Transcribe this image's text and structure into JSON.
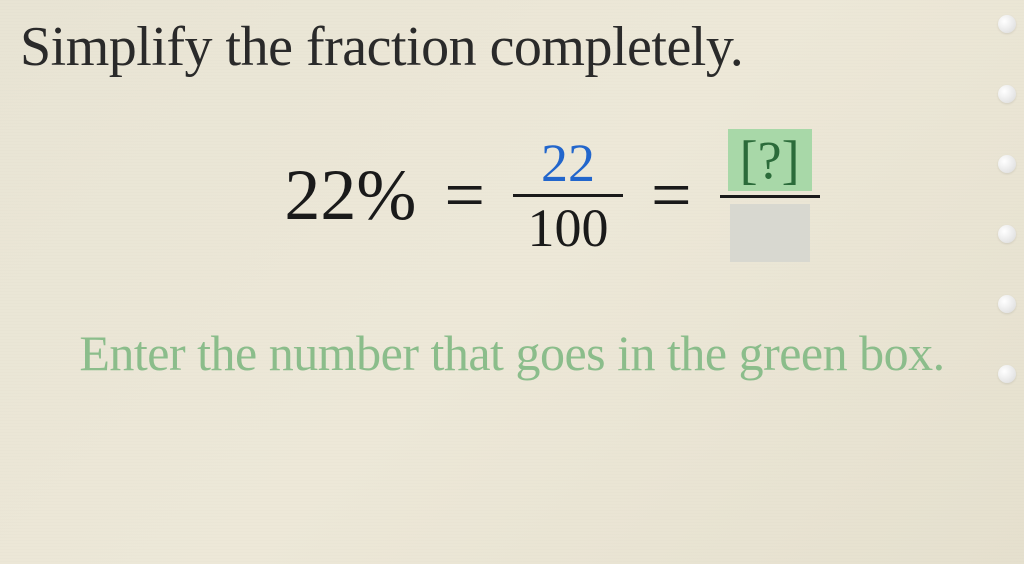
{
  "title": "Simplify the fraction completely.",
  "equation": {
    "percent_display": "22%",
    "equals_sign": "=",
    "fraction1": {
      "numerator": "22",
      "denominator": "100",
      "numerator_color": "#2266cc",
      "denominator_color": "#1a1a1a"
    },
    "answer": {
      "numerator": "[?]",
      "numerator_bg": "#a8d8a8",
      "numerator_color": "#2b6b3a",
      "denominator_bg": "#d8d8d0"
    }
  },
  "instruction": "Enter the number that goes in the green box.",
  "styling": {
    "background_color": "#e8e4d4",
    "title_color": "#2a2a2a",
    "title_fontsize": 56,
    "equation_fontsize": 72,
    "fraction_fontsize": 54,
    "instruction_color": "#8bbd8b",
    "instruction_fontsize": 50
  }
}
